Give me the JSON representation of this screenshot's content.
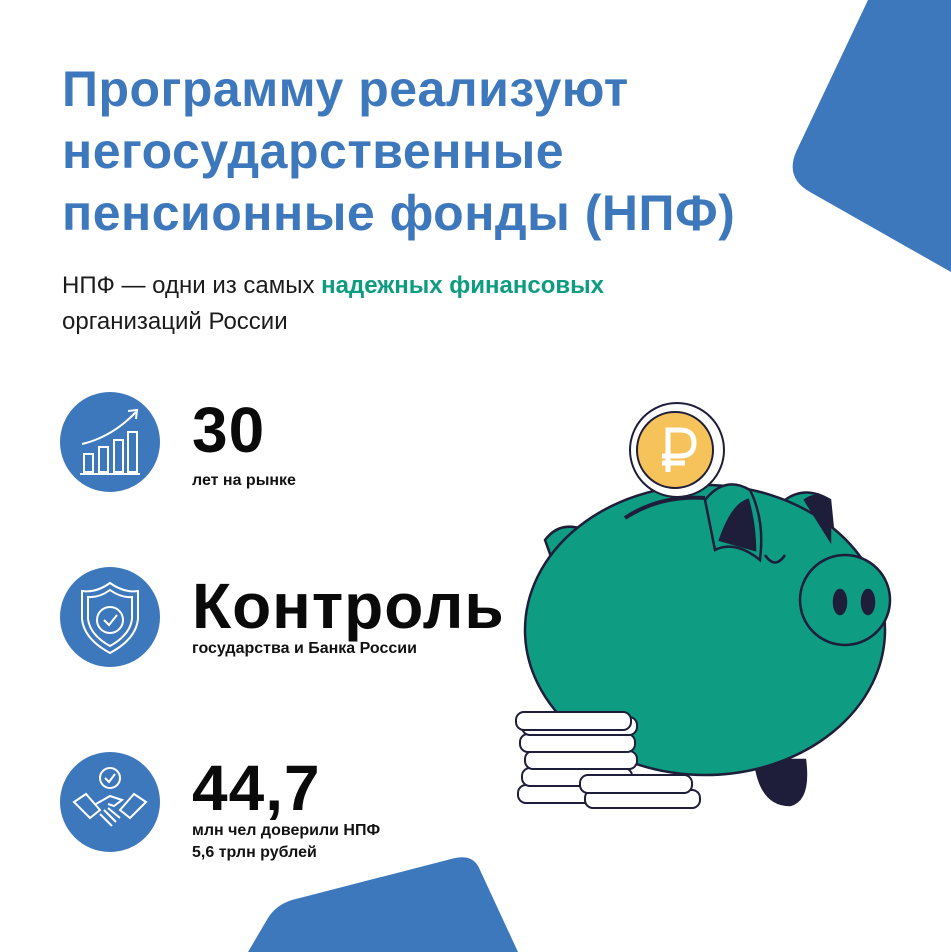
{
  "title": {
    "line1": "Программу реализуют",
    "line2": "негосударственные",
    "line3": "пенсионные фонды (НПФ)"
  },
  "subtitle": {
    "prefix": "НПФ — одни из самых ",
    "highlight": "надежных финансовых",
    "suffix": "организаций России"
  },
  "facts": [
    {
      "icon": "growth-chart-icon",
      "value": "30",
      "caption": "лет на рынке"
    },
    {
      "icon": "shield-check-icon",
      "value": "Контроль",
      "caption": "государства и Банка России"
    },
    {
      "icon": "handshake-icon",
      "value": "44,7",
      "caption": "млн чел доверили НПФ",
      "caption2": "5,6 трлн рублей"
    }
  ],
  "colors": {
    "brand_blue": "#3E78BC",
    "accent_green": "#0E9C80",
    "coin_gold": "#F6C25A",
    "outline": "#1E1E3A"
  }
}
